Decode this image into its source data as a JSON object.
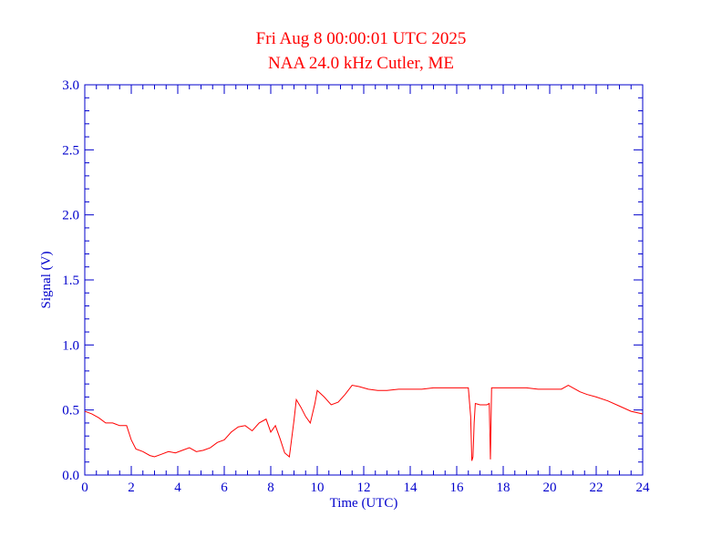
{
  "chart_data": {
    "type": "line",
    "title": "Fri Aug 8 00:00:01 UTC 2025",
    "subtitle": "NAA 24.0 kHz Cutler, ME",
    "xlabel": "Time (UTC)",
    "ylabel": "Signal (V)",
    "xlim": [
      0,
      24
    ],
    "ylim": [
      0.0,
      3.0
    ],
    "x_ticks": [
      "0",
      "2",
      "4",
      "6",
      "8",
      "10",
      "12",
      "14",
      "16",
      "18",
      "20",
      "22",
      "24"
    ],
    "y_ticks": [
      "0.0",
      "0.5",
      "1.0",
      "1.5",
      "2.0",
      "2.5",
      "3.0"
    ],
    "grid": false,
    "colors": {
      "axes": "#0000cc",
      "series": "#ff0000",
      "title": "#ff0000"
    },
    "series": [
      {
        "x": [
          0.0,
          0.3,
          0.6,
          0.9,
          1.2,
          1.5,
          1.8,
          2.0,
          2.2,
          2.5,
          2.8,
          3.0,
          3.3,
          3.6,
          3.9,
          4.2,
          4.5,
          4.8,
          5.1,
          5.4,
          5.7,
          6.0,
          6.3,
          6.6,
          6.9,
          7.2,
          7.5,
          7.8,
          8.0,
          8.2,
          8.4,
          8.6,
          8.8,
          9.0,
          9.1,
          9.3,
          9.5,
          9.7,
          9.9,
          10.0,
          10.3,
          10.6,
          10.9,
          11.2,
          11.5,
          11.8,
          12.2,
          12.6,
          13.0,
          13.5,
          14.0,
          14.5,
          15.0,
          15.5,
          16.0,
          16.5,
          16.6,
          16.65,
          16.7,
          16.75,
          16.8,
          17.0,
          17.3,
          17.4,
          17.45,
          17.5,
          17.55,
          18.0,
          18.5,
          19.0,
          19.5,
          20.0,
          20.5,
          20.8,
          21.0,
          21.3,
          21.6,
          22.0,
          22.5,
          23.0,
          23.5,
          24.0
        ],
        "values": [
          0.49,
          0.47,
          0.44,
          0.4,
          0.4,
          0.38,
          0.38,
          0.27,
          0.2,
          0.18,
          0.15,
          0.14,
          0.16,
          0.18,
          0.17,
          0.19,
          0.21,
          0.18,
          0.19,
          0.21,
          0.25,
          0.27,
          0.33,
          0.37,
          0.38,
          0.34,
          0.4,
          0.43,
          0.33,
          0.38,
          0.28,
          0.17,
          0.14,
          0.42,
          0.58,
          0.52,
          0.45,
          0.4,
          0.55,
          0.65,
          0.6,
          0.54,
          0.56,
          0.62,
          0.69,
          0.68,
          0.66,
          0.65,
          0.65,
          0.66,
          0.66,
          0.66,
          0.67,
          0.67,
          0.67,
          0.67,
          0.45,
          0.11,
          0.14,
          0.4,
          0.55,
          0.54,
          0.54,
          0.55,
          0.12,
          0.67,
          0.67,
          0.67,
          0.67,
          0.67,
          0.66,
          0.66,
          0.66,
          0.69,
          0.67,
          0.64,
          0.62,
          0.6,
          0.57,
          0.53,
          0.49,
          0.47
        ]
      }
    ]
  }
}
